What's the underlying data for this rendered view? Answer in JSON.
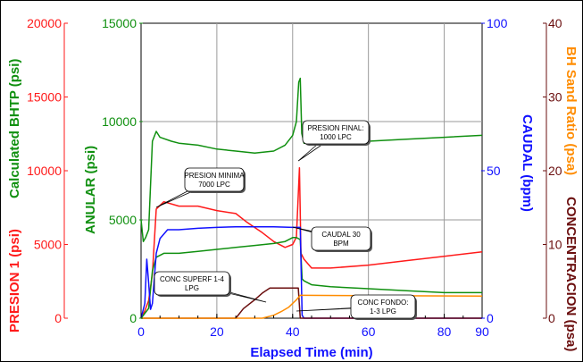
{
  "chart_data": {
    "type": "line",
    "title": "",
    "x_axis": {
      "label": "Elapsed Time (min)",
      "range": [
        0,
        90
      ],
      "ticks": [
        "0",
        "20",
        "40",
        "60",
        "80",
        "90"
      ],
      "color": "#1010ff"
    },
    "y_axes": [
      {
        "key": "presion",
        "label": "PRESION 1 (psi)",
        "color": "#ff1a1a",
        "range": [
          0,
          20000
        ],
        "ticks": [
          "0",
          "5000",
          "10000",
          "15000",
          "20000"
        ],
        "side": "left"
      },
      {
        "key": "bhtp",
        "label": "Calculated BHTP (psi)",
        "color": "#109010",
        "range": [
          0,
          20000
        ],
        "ticks": [],
        "side": "left"
      },
      {
        "key": "anular",
        "label": "ANULAR (psi)",
        "color": "#109010",
        "range": [
          0,
          15000
        ],
        "ticks": [
          "0",
          "5000",
          "10000",
          "15000"
        ],
        "side": "left"
      },
      {
        "key": "caudal",
        "label": "CAUDAL (bpm)",
        "color": "#1010ff",
        "range": [
          0,
          100
        ],
        "ticks": [
          "0",
          "50",
          "100"
        ],
        "side": "right"
      },
      {
        "key": "concentracion",
        "label": "CONCENTRACION (psa)",
        "color": "#6b0f0f",
        "range": [
          0,
          40
        ],
        "ticks": [
          "0",
          "10",
          "20",
          "30",
          "40"
        ],
        "side": "right"
      },
      {
        "key": "bh_sand",
        "label": "BH Sand Ratio (psa)",
        "color": "#ff8c00",
        "range": [
          0,
          40
        ],
        "ticks": [],
        "side": "right"
      }
    ],
    "grid": true,
    "series": [
      {
        "name": "PRESION 1 (psi)",
        "axis": "presion",
        "color": "#ff1a1a",
        "x": [
          0,
          1,
          2,
          3,
          4,
          6,
          10,
          15,
          20,
          25,
          28,
          32,
          35,
          38,
          40,
          41,
          41.8,
          42.2,
          43,
          45,
          50,
          60,
          70,
          80,
          90
        ],
        "y": [
          0,
          500,
          1200,
          3000,
          7400,
          7900,
          7600,
          7600,
          7300,
          7100,
          6500,
          5800,
          5200,
          4800,
          5000,
          5500,
          10200,
          4400,
          4000,
          3400,
          3400,
          3600,
          3900,
          4200,
          4500
        ]
      },
      {
        "name": "ANULAR (psi)",
        "axis": "anular",
        "color": "#109010",
        "x": [
          0,
          0.6,
          1.2,
          2,
          3,
          4,
          5,
          8,
          10,
          15,
          20,
          25,
          30,
          35,
          38,
          40,
          41,
          41.6,
          42,
          42.4,
          43,
          45,
          50,
          60,
          70,
          80,
          90
        ],
        "y": [
          5000,
          3900,
          4100,
          4500,
          9000,
          9500,
          9200,
          9000,
          8900,
          8800,
          8600,
          8500,
          8400,
          8500,
          8800,
          9300,
          10000,
          12000,
          12200,
          9400,
          8900,
          8900,
          8900,
          9000,
          9100,
          9200,
          9300
        ]
      },
      {
        "name": "Calculated BHTP (psi)",
        "axis": "anular",
        "color": "#109010",
        "x": [
          0,
          2,
          3,
          4,
          6,
          10,
          15,
          20,
          25,
          30,
          35,
          38,
          40,
          41,
          42,
          42.5,
          43,
          45,
          50,
          60,
          70,
          80,
          90
        ],
        "y": [
          0,
          500,
          2400,
          3100,
          3300,
          3300,
          3400,
          3500,
          3600,
          3700,
          3800,
          3900,
          4100,
          4100,
          4000,
          2000,
          1900,
          1700,
          1600,
          1500,
          1400,
          1300,
          1300
        ]
      },
      {
        "name": "CAUDAL (bpm)",
        "axis": "caudal",
        "color": "#1010ff",
        "x": [
          0,
          1,
          1.5,
          2,
          2.5,
          3,
          4,
          5,
          7,
          10,
          15,
          20,
          25,
          30,
          35,
          40,
          42,
          42.5,
          43,
          90
        ],
        "y": [
          0,
          5,
          20,
          12,
          3,
          5,
          22,
          27,
          30,
          30,
          30.5,
          30.8,
          31,
          31,
          31,
          30.8,
          30.8,
          1,
          0,
          0
        ]
      },
      {
        "name": "CONCENTRACION (psa)",
        "axis": "concentracion",
        "color": "#6b0f0f",
        "x": [
          0,
          25,
          27,
          30,
          32,
          34,
          36,
          38,
          41.5,
          42,
          90
        ],
        "y": [
          0,
          0,
          1.3,
          2.5,
          3.4,
          4.1,
          4.1,
          4.1,
          4.1,
          0,
          0
        ]
      },
      {
        "name": "BH Sand Ratio (psa)",
        "axis": "bh_sand",
        "color": "#ff8c00",
        "x": [
          0,
          32,
          35,
          37,
          39,
          41,
          42,
          43,
          90
        ],
        "y": [
          0,
          0,
          0.4,
          0.9,
          1.5,
          2.5,
          3.1,
          3.1,
          3.0
        ]
      }
    ],
    "annotations": [
      {
        "id": "presion_minima",
        "line1": "PRESION MINIMA",
        "line2": "7000 LPC"
      },
      {
        "id": "presion_final",
        "line1": "PRESION FINAL:",
        "line2": "1000 LPC"
      },
      {
        "id": "caudal_30",
        "line1": "CAUDAL 30",
        "line2": "BPM"
      },
      {
        "id": "conc_superf",
        "line1": "CONC SUPERF 1-4",
        "line2": "LPG"
      },
      {
        "id": "conc_fondo",
        "line1": "CONC FONDO:",
        "line2": "1-3 LPG"
      }
    ]
  }
}
